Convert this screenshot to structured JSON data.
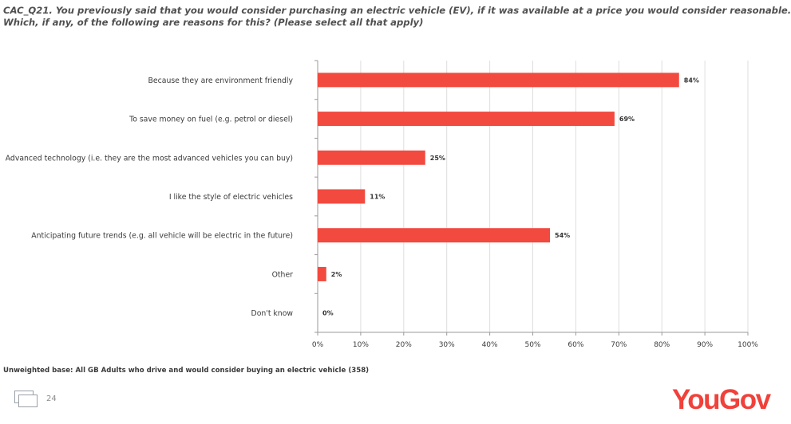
{
  "question": {
    "line1": "CAC_Q21. You previously said that you would consider purchasing an electric vehicle (EV), if it was available at a price you would consider reasonable.",
    "line2": "Which, if any, of the following are reasons for this? (Please select all that apply)"
  },
  "base_note": "Unweighted base: All GB Adults who drive and would consider buying an electric vehicle (358)",
  "footer": {
    "page_number": "24",
    "icon": "slides-icon"
  },
  "brand": {
    "logo_text": "YouGov",
    "color": "#f0413a"
  },
  "chart_data": {
    "type": "bar",
    "orientation": "horizontal",
    "categories": [
      "Because they are environment friendly",
      "To save money on fuel (e.g. petrol or diesel)",
      "Advanced technology (i.e. they are the most advanced vehicles you can buy)",
      "I like the style of electric vehicles",
      "Anticipating future trends (e.g. all vehicle will be electric in the future)",
      "Other",
      "Don't know"
    ],
    "values": [
      84,
      69,
      25,
      11,
      54,
      2,
      0
    ],
    "data_labels": [
      "84%",
      "69%",
      "25%",
      "11%",
      "54%",
      "2%",
      "0%"
    ],
    "xlim": [
      0,
      100
    ],
    "x_ticks": [
      0,
      10,
      20,
      30,
      40,
      50,
      60,
      70,
      80,
      90,
      100
    ],
    "x_tick_labels": [
      "0%",
      "10%",
      "20%",
      "30%",
      "40%",
      "50%",
      "60%",
      "70%",
      "80%",
      "90%",
      "100%"
    ],
    "grid": true,
    "bar_color": "#f24a3f",
    "title": "",
    "xlabel": "",
    "ylabel": ""
  }
}
